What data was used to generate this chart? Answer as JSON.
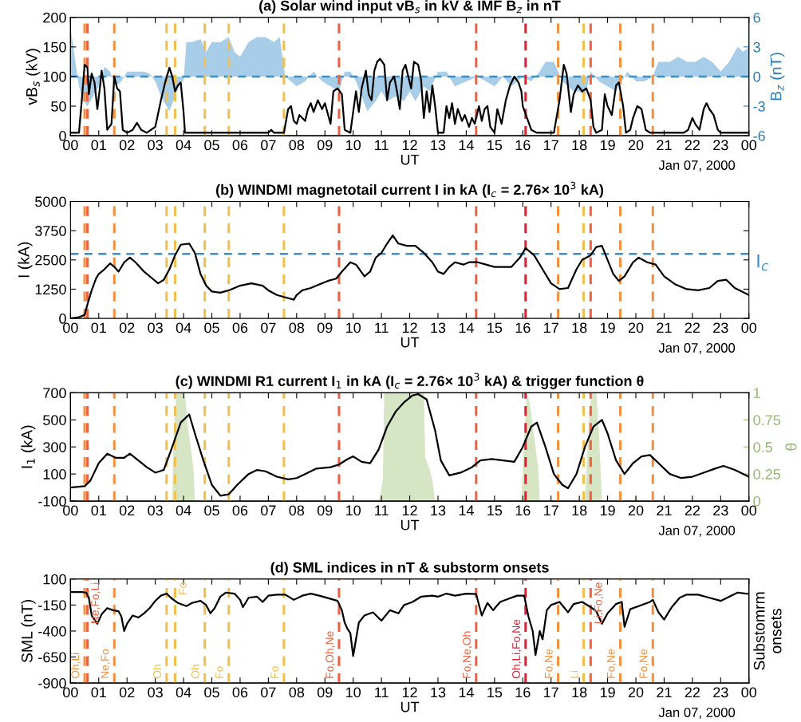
{
  "chart_data": [
    {
      "type": "line",
      "title": "(a) Solar wind input vB$_{s}$ in kV & IMF B$_{z}$ in nT",
      "xlabel": "UT",
      "ylabel": "vB$_{s}$ (kV)",
      "y2label": "B$_{z}$ (nT)",
      "annotations": [
        "Jan 07, 2000"
      ],
      "xlim": [
        0,
        24
      ],
      "xticks": [
        {
          "value": 0,
          "label": "00"
        },
        {
          "value": 1,
          "label": "01"
        },
        {
          "value": 2,
          "label": "02"
        },
        {
          "value": 3,
          "label": "03"
        },
        {
          "value": 4,
          "label": "04"
        },
        {
          "value": 5,
          "label": "05"
        },
        {
          "value": 6,
          "label": "06"
        },
        {
          "value": 7,
          "label": "07"
        },
        {
          "value": 8,
          "label": "08"
        },
        {
          "value": 9,
          "label": "09"
        },
        {
          "value": 10,
          "label": "10"
        },
        {
          "value": 11,
          "label": "11"
        },
        {
          "value": 12,
          "label": "12"
        },
        {
          "value": 13,
          "label": "13"
        },
        {
          "value": 14,
          "label": "14"
        },
        {
          "value": 15,
          "label": "15"
        },
        {
          "value": 16,
          "label": "16"
        },
        {
          "value": 17,
          "label": "17"
        },
        {
          "value": 18,
          "label": "18"
        },
        {
          "value": 19,
          "label": "19"
        },
        {
          "value": 20,
          "label": "20"
        },
        {
          "value": 21,
          "label": "21"
        },
        {
          "value": 22,
          "label": "22"
        },
        {
          "value": 23,
          "label": "23"
        },
        {
          "value": 24,
          "label": "00"
        }
      ],
      "ylim": [
        0,
        200
      ],
      "yticks": [
        0,
        50,
        100,
        150,
        200
      ],
      "y2lim": [
        -6,
        6
      ],
      "y2ticks": [
        -6,
        -3,
        0,
        3,
        6
      ],
      "series": [
        {
          "type": "area",
          "axis": "y2",
          "color": "#a8cde8",
          "x": [
            0,
            0.15,
            0.3,
            0.45,
            0.6,
            0.8,
            1.0,
            1.2,
            1.4,
            1.6,
            1.8,
            2.0,
            2.3,
            2.6,
            2.8,
            3.0,
            3.2,
            3.5,
            3.7,
            3.9,
            4.0,
            4.1,
            4.3,
            4.6,
            4.8,
            5.0,
            5.3,
            5.6,
            5.8,
            6.0,
            6.3,
            6.6,
            6.9,
            7.2,
            7.4,
            7.6,
            7.8,
            8.0,
            8.3,
            8.6,
            8.9,
            9.2,
            9.5,
            9.7,
            9.9,
            10.1,
            10.3,
            10.5,
            10.8,
            11.0,
            11.2,
            11.5,
            11.8,
            12.0,
            12.2,
            12.5,
            12.7,
            13.0,
            13.3,
            13.6,
            14.0,
            14.4,
            14.7,
            15.0,
            15.3,
            15.6,
            16.0,
            16.3,
            16.6,
            16.8,
            17.1,
            17.4,
            17.6,
            17.8,
            18.0,
            18.2,
            18.4,
            18.7,
            19.0,
            19.3,
            19.5,
            19.7,
            20.0,
            20.3,
            20.6,
            20.8,
            21.2,
            21.5,
            21.8,
            22.1,
            22.4,
            22.7,
            23.0,
            23.3,
            23.6,
            23.8,
            24
          ],
          "values": [
            5,
            2,
            -1,
            -2.5,
            -3,
            -2,
            -1,
            1,
            0.5,
            -1,
            -0.5,
            0.5,
            0.5,
            0.5,
            0.3,
            -0.5,
            -2,
            -3.5,
            -2,
            -0.5,
            -0.5,
            3.5,
            3.5,
            3.8,
            2.5,
            3.5,
            3.5,
            4,
            2.5,
            2,
            3.5,
            4,
            4,
            3.5,
            4,
            0,
            -0.5,
            -1,
            -0.5,
            0.5,
            -0.5,
            -1,
            -1.5,
            0.5,
            0.5,
            -0.5,
            -2,
            -3.5,
            -2.5,
            -1.5,
            -2.5,
            -2,
            -2.5,
            -1.5,
            -2.5,
            -1,
            -1.5,
            0.5,
            0.5,
            -1,
            -0.5,
            0,
            -0.5,
            -1,
            0,
            -1,
            0,
            -0.5,
            0.5,
            1.5,
            1.5,
            -0.5,
            -1,
            -1.5,
            -1.5,
            -2,
            0.5,
            -0.5,
            -1,
            -1.5,
            -0.5,
            0.5,
            -0.5,
            -0.5,
            0,
            1.5,
            1.5,
            2,
            1.5,
            1.5,
            2,
            1.5,
            0.5,
            1.5,
            3,
            2.5,
            3
          ]
        },
        {
          "color": "#000000",
          "x": [
            0,
            0.3,
            0.4,
            0.5,
            0.6,
            0.65,
            0.75,
            0.85,
            0.95,
            1.05,
            1.1,
            1.2,
            1.3,
            1.45,
            1.55,
            1.65,
            1.75,
            1.85,
            2.0,
            2.2,
            2.35,
            2.5,
            2.7,
            3.0,
            3.2,
            3.35,
            3.5,
            3.6,
            3.7,
            3.8,
            3.9,
            4.0,
            4.05,
            7.0,
            7.1,
            7.2,
            7.55,
            7.7,
            7.8,
            7.9,
            8.0,
            8.1,
            8.3,
            8.4,
            8.5,
            8.6,
            8.75,
            8.9,
            9.0,
            9.2,
            9.3,
            9.45,
            9.6,
            9.7,
            9.9,
            10.0,
            10.1,
            10.2,
            10.3,
            10.45,
            10.55,
            10.65,
            10.75,
            10.85,
            10.95,
            11.1,
            11.2,
            11.3,
            11.45,
            11.55,
            11.65,
            11.75,
            11.85,
            11.95,
            12.05,
            12.15,
            12.3,
            12.4,
            12.5,
            12.6,
            12.7,
            12.8,
            12.9,
            13.0,
            13.2,
            13.3,
            13.4,
            13.5,
            13.6,
            13.7,
            13.85,
            13.95,
            14.1,
            14.2,
            14.3,
            14.45,
            14.55,
            14.65,
            14.75,
            14.85,
            15.0,
            15.1,
            15.25,
            15.4,
            15.55,
            15.7,
            15.85,
            15.95,
            16.0,
            16.15,
            16.3,
            16.5,
            17.1,
            17.3,
            17.45,
            17.55,
            17.7,
            17.8,
            17.95,
            18.1,
            18.25,
            18.4,
            18.5,
            18.6,
            18.8,
            18.9,
            19.0,
            19.15,
            19.3,
            19.4,
            19.55,
            19.65,
            19.8,
            19.9,
            20.05,
            20.2,
            20.35,
            20.5,
            21.7,
            21.85,
            22.0,
            22.1,
            22.25,
            22.4,
            22.5,
            22.6,
            22.75,
            22.9,
            23.0,
            24
          ],
          "values": [
            5,
            5,
            60,
            120,
            115,
            70,
            105,
            90,
            45,
            85,
            110,
            80,
            10,
            20,
            100,
            80,
            75,
            10,
            5,
            10,
            22,
            10,
            5,
            15,
            60,
            90,
            115,
            100,
            75,
            85,
            90,
            40,
            5,
            5,
            10,
            5,
            5,
            45,
            50,
            25,
            20,
            35,
            25,
            45,
            55,
            40,
            60,
            45,
            55,
            20,
            75,
            80,
            70,
            10,
            5,
            40,
            75,
            40,
            80,
            110,
            70,
            60,
            110,
            125,
            130,
            120,
            60,
            90,
            100,
            75,
            45,
            110,
            120,
            100,
            80,
            125,
            120,
            95,
            30,
            75,
            40,
            85,
            50,
            5,
            5,
            50,
            30,
            55,
            20,
            45,
            25,
            35,
            15,
            30,
            20,
            50,
            25,
            45,
            50,
            15,
            5,
            45,
            20,
            60,
            85,
            100,
            90,
            75,
            50,
            30,
            10,
            5,
            5,
            60,
            120,
            105,
            40,
            70,
            85,
            75,
            80,
            60,
            15,
            5,
            10,
            70,
            50,
            35,
            85,
            90,
            50,
            5,
            10,
            30,
            50,
            45,
            10,
            5,
            5,
            10,
            30,
            20,
            10,
            45,
            55,
            45,
            35,
            10,
            5,
            5
          ]
        }
      ],
      "ref_lines": [
        {
          "axis": "y2",
          "value": 0,
          "color": "#3a8fc8",
          "line_style": "dashed"
        },
        {
          "axis": "x",
          "value": 0.5,
          "color": "#f39040",
          "line_style": "dashed"
        },
        {
          "axis": "x",
          "value": 0.6,
          "color": "#ee6040",
          "line_style": "dashed"
        },
        {
          "axis": "x",
          "value": 1.55,
          "color": "#f39040",
          "line_style": "dashed"
        },
        {
          "axis": "x",
          "value": 3.4,
          "color": "#efc050",
          "line_style": "dashed"
        },
        {
          "axis": "x",
          "value": 3.7,
          "color": "#efc050",
          "line_style": "dashed"
        },
        {
          "axis": "x",
          "value": 4.75,
          "color": "#efc050",
          "line_style": "dashed"
        },
        {
          "axis": "x",
          "value": 5.6,
          "color": "#efc050",
          "line_style": "dashed"
        },
        {
          "axis": "x",
          "value": 7.55,
          "color": "#efc050",
          "line_style": "dashed"
        },
        {
          "axis": "x",
          "value": 9.5,
          "color": "#ee6040",
          "line_style": "dashed"
        },
        {
          "axis": "x",
          "value": 14.35,
          "color": "#ee6040",
          "line_style": "dashed"
        },
        {
          "axis": "x",
          "value": 16.1,
          "color": "#e02030",
          "line_style": "dashed"
        },
        {
          "axis": "x",
          "value": 17.25,
          "color": "#f39040",
          "line_style": "dashed"
        },
        {
          "axis": "x",
          "value": 18.15,
          "color": "#efc050",
          "line_style": "dashed"
        },
        {
          "axis": "x",
          "value": 18.4,
          "color": "#ee6040",
          "line_style": "dashed"
        },
        {
          "axis": "x",
          "value": 19.45,
          "color": "#f39040",
          "line_style": "dashed"
        },
        {
          "axis": "x",
          "value": 20.6,
          "color": "#f39040",
          "line_style": "dashed"
        }
      ]
    },
    {
      "type": "line",
      "title": "(b) WINDMI magnetotail current I in kA (I$_{c}$ = 2.76× 10$^{3}$ kA)",
      "xlabel": "UT",
      "ylabel": "I (kA)",
      "annotations": [
        "Jan 07, 2000"
      ],
      "xlim": [
        0,
        24
      ],
      "xticks": [
        {
          "value": 0,
          "label": "00"
        },
        {
          "value": 1,
          "label": "01"
        },
        {
          "value": 2,
          "label": "02"
        },
        {
          "value": 3,
          "label": "03"
        },
        {
          "value": 4,
          "label": "04"
        },
        {
          "value": 5,
          "label": "05"
        },
        {
          "value": 6,
          "label": "06"
        },
        {
          "value": 7,
          "label": "07"
        },
        {
          "value": 8,
          "label": "08"
        },
        {
          "value": 9,
          "label": "09"
        },
        {
          "value": 10,
          "label": "10"
        },
        {
          "value": 11,
          "label": "11"
        },
        {
          "value": 12,
          "label": "12"
        },
        {
          "value": 13,
          "label": "13"
        },
        {
          "value": 14,
          "label": "14"
        },
        {
          "value": 15,
          "label": "15"
        },
        {
          "value": 16,
          "label": "16"
        },
        {
          "value": 17,
          "label": "17"
        },
        {
          "value": 18,
          "label": "18"
        },
        {
          "value": 19,
          "label": "19"
        },
        {
          "value": 20,
          "label": "20"
        },
        {
          "value": 21,
          "label": "21"
        },
        {
          "value": 22,
          "label": "22"
        },
        {
          "value": 23,
          "label": "23"
        },
        {
          "value": 24,
          "label": "00"
        }
      ],
      "ylim": [
        0,
        5000
      ],
      "yticks": [
        0,
        1250,
        2500,
        3750,
        5000
      ],
      "series": [
        {
          "color": "#000000",
          "x": [
            0,
            0.3,
            0.5,
            0.6,
            0.75,
            0.9,
            1.0,
            1.2,
            1.4,
            1.55,
            1.7,
            1.9,
            2.1,
            2.3,
            2.6,
            2.9,
            3.1,
            3.3,
            3.5,
            3.7,
            3.9,
            4.2,
            4.4,
            4.6,
            4.8,
            5.0,
            5.3,
            5.6,
            6.0,
            6.4,
            6.8,
            7.0,
            7.3,
            7.6,
            7.9,
            8.0,
            8.2,
            8.5,
            8.8,
            9.1,
            9.4,
            9.6,
            9.9,
            10.1,
            10.4,
            10.6,
            10.8,
            11.0,
            11.2,
            11.4,
            11.6,
            11.9,
            12.2,
            12.5,
            12.8,
            13.0,
            13.2,
            13.4,
            13.6,
            13.9,
            14.1,
            14.4,
            14.7,
            15.0,
            15.3,
            15.6,
            15.9,
            16.1,
            16.4,
            16.7,
            17.0,
            17.3,
            17.6,
            17.9,
            18.1,
            18.4,
            18.6,
            18.8,
            19.0,
            19.2,
            19.4,
            19.6,
            19.9,
            20.1,
            20.4,
            20.7,
            21.0,
            21.4,
            21.8,
            22.2,
            22.6,
            22.9,
            23.2,
            23.5,
            24
          ],
          "values": [
            0,
            50,
            150,
            600,
            1200,
            1700,
            1900,
            2100,
            2350,
            2200,
            2000,
            2400,
            2600,
            2400,
            2000,
            1700,
            1500,
            1650,
            2100,
            2700,
            3150,
            3200,
            2800,
            1900,
            1400,
            1150,
            1100,
            1200,
            1400,
            1500,
            1400,
            1200,
            1000,
            900,
            800,
            1000,
            1200,
            1300,
            1450,
            1600,
            1700,
            2000,
            2400,
            2300,
            1800,
            2000,
            2600,
            2800,
            3200,
            3550,
            3200,
            3100,
            3100,
            2800,
            2400,
            2000,
            1900,
            2200,
            2400,
            2300,
            2400,
            2400,
            2300,
            2200,
            2200,
            2200,
            2600,
            3000,
            2700,
            2100,
            1500,
            1250,
            1300,
            2100,
            2500,
            2700,
            3050,
            3100,
            2500,
            1900,
            1600,
            1800,
            2400,
            2600,
            2400,
            2300,
            1800,
            1450,
            1250,
            1200,
            1300,
            1600,
            1650,
            1300,
            1000
          ]
        }
      ],
      "ref_lines": [
        {
          "axis": "y",
          "value": 2760,
          "label": "I$_{c}$",
          "color": "#3a8fc8",
          "line_style": "dashed"
        },
        {
          "axis": "x",
          "value": 0.5,
          "color": "#f39040",
          "line_style": "dashed"
        },
        {
          "axis": "x",
          "value": 0.6,
          "color": "#ee6040",
          "line_style": "dashed"
        },
        {
          "axis": "x",
          "value": 1.55,
          "color": "#f39040",
          "line_style": "dashed"
        },
        {
          "axis": "x",
          "value": 3.4,
          "color": "#efc050",
          "line_style": "dashed"
        },
        {
          "axis": "x",
          "value": 3.7,
          "color": "#efc050",
          "line_style": "dashed"
        },
        {
          "axis": "x",
          "value": 4.75,
          "color": "#efc050",
          "line_style": "dashed"
        },
        {
          "axis": "x",
          "value": 5.6,
          "color": "#efc050",
          "line_style": "dashed"
        },
        {
          "axis": "x",
          "value": 7.55,
          "color": "#efc050",
          "line_style": "dashed"
        },
        {
          "axis": "x",
          "value": 9.5,
          "color": "#ee6040",
          "line_style": "dashed"
        },
        {
          "axis": "x",
          "value": 14.35,
          "color": "#ee6040",
          "line_style": "dashed"
        },
        {
          "axis": "x",
          "value": 16.1,
          "color": "#e02030",
          "line_style": "dashed"
        },
        {
          "axis": "x",
          "value": 17.25,
          "color": "#f39040",
          "line_style": "dashed"
        },
        {
          "axis": "x",
          "value": 18.15,
          "color": "#efc050",
          "line_style": "dashed"
        },
        {
          "axis": "x",
          "value": 18.4,
          "color": "#ee6040",
          "line_style": "dashed"
        },
        {
          "axis": "x",
          "value": 19.45,
          "color": "#f39040",
          "line_style": "dashed"
        },
        {
          "axis": "x",
          "value": 20.6,
          "color": "#f39040",
          "line_style": "dashed"
        }
      ]
    },
    {
      "type": "line",
      "title": "(c) WINDMI R1 current I$_{1}$ in kA (I$_{c}$ = 2.76× 10$^{3}$ kA) & trigger function θ",
      "xlabel": "UT",
      "ylabel": "I$_{1}$ (kA)",
      "y2label": "θ",
      "annotations": [
        "Jan 07, 2000"
      ],
      "xlim": [
        0,
        24
      ],
      "xticks": [
        {
          "value": 0,
          "label": "00"
        },
        {
          "value": 1,
          "label": "01"
        },
        {
          "value": 2,
          "label": "02"
        },
        {
          "value": 3,
          "label": "03"
        },
        {
          "value": 4,
          "label": "04"
        },
        {
          "value": 5,
          "label": "05"
        },
        {
          "value": 6,
          "label": "06"
        },
        {
          "value": 7,
          "label": "07"
        },
        {
          "value": 8,
          "label": "08"
        },
        {
          "value": 9,
          "label": "09"
        },
        {
          "value": 10,
          "label": "10"
        },
        {
          "value": 11,
          "label": "11"
        },
        {
          "value": 12,
          "label": "12"
        },
        {
          "value": 13,
          "label": "13"
        },
        {
          "value": 14,
          "label": "14"
        },
        {
          "value": 15,
          "label": "15"
        },
        {
          "value": 16,
          "label": "16"
        },
        {
          "value": 17,
          "label": "17"
        },
        {
          "value": 18,
          "label": "18"
        },
        {
          "value": 19,
          "label": "19"
        },
        {
          "value": 20,
          "label": "20"
        },
        {
          "value": 21,
          "label": "21"
        },
        {
          "value": 22,
          "label": "22"
        },
        {
          "value": 23,
          "label": "23"
        },
        {
          "value": 24,
          "label": "00"
        }
      ],
      "ylim": [
        -100,
        700
      ],
      "yticks": [
        -100,
        100,
        300,
        500,
        700
      ],
      "y2lim": [
        0,
        1
      ],
      "y2ticks": [
        0,
        0.25,
        0.5,
        0.75,
        1
      ],
      "series": [
        {
          "type": "area",
          "axis": "y2",
          "color": "#d6e6c4",
          "x": [
            0,
            3.6,
            3.65,
            3.75,
            4.05,
            4.15,
            4.35,
            4.4,
            10.9,
            10.95,
            11.05,
            11.1,
            12.5,
            12.55,
            12.7,
            12.8,
            12.9,
            15.95,
            16.05,
            16.15,
            16.25,
            16.4,
            16.55,
            16.6,
            18.2,
            18.35,
            18.45,
            18.6,
            18.7,
            18.8,
            19.9,
            20.0,
            20.1,
            24
          ],
          "values": [
            0,
            0,
            0.6,
            1,
            1,
            0.7,
            0.3,
            0,
            0,
            0.05,
            0.2,
            1,
            1,
            0.4,
            0.3,
            0.2,
            0,
            0,
            0.6,
            1,
            0.9,
            0.6,
            0.3,
            0,
            0,
            0.8,
            1,
            1,
            0.6,
            0,
            0,
            0.05,
            0,
            0
          ]
        },
        {
          "color": "#000000",
          "x": [
            0,
            0.5,
            0.7,
            1.0,
            1.3,
            1.6,
            1.9,
            2.1,
            2.4,
            2.7,
            3.0,
            3.3,
            3.6,
            3.9,
            4.2,
            4.4,
            4.7,
            5.0,
            5.3,
            5.6,
            5.9,
            6.3,
            6.6,
            6.9,
            7.3,
            7.7,
            8.0,
            8.3,
            8.7,
            9.2,
            9.5,
            9.8,
            10.0,
            10.3,
            10.6,
            10.9,
            11.2,
            11.5,
            11.8,
            12.1,
            12.3,
            12.6,
            12.9,
            13.1,
            13.4,
            13.8,
            14.2,
            14.5,
            14.9,
            15.3,
            15.7,
            16.0,
            16.3,
            16.5,
            16.8,
            17.1,
            17.4,
            17.6,
            17.9,
            18.2,
            18.5,
            18.8,
            19.0,
            19.3,
            19.6,
            19.9,
            20.2,
            20.5,
            20.8,
            21.2,
            21.6,
            22.0,
            22.4,
            22.8,
            23.1,
            23.5,
            24
          ],
          "values": [
            0,
            10,
            50,
            180,
            250,
            220,
            220,
            250,
            200,
            150,
            110,
            130,
            300,
            480,
            540,
            400,
            200,
            20,
            -60,
            -50,
            20,
            100,
            130,
            120,
            80,
            60,
            70,
            100,
            140,
            150,
            170,
            210,
            230,
            190,
            180,
            280,
            450,
            560,
            630,
            680,
            690,
            650,
            420,
            200,
            90,
            110,
            150,
            200,
            210,
            200,
            190,
            300,
            450,
            480,
            300,
            100,
            20,
            -5,
            100,
            300,
            450,
            500,
            400,
            200,
            100,
            180,
            230,
            240,
            180,
            100,
            70,
            80,
            110,
            140,
            160,
            130,
            80
          ]
        }
      ],
      "ref_lines": [
        {
          "axis": "x",
          "value": 0.5,
          "color": "#f39040",
          "line_style": "dashed"
        },
        {
          "axis": "x",
          "value": 0.6,
          "color": "#ee6040",
          "line_style": "dashed"
        },
        {
          "axis": "x",
          "value": 1.55,
          "color": "#f39040",
          "line_style": "dashed"
        },
        {
          "axis": "x",
          "value": 3.4,
          "color": "#efc050",
          "line_style": "dashed"
        },
        {
          "axis": "x",
          "value": 3.7,
          "color": "#efc050",
          "line_style": "dashed"
        },
        {
          "axis": "x",
          "value": 4.75,
          "color": "#efc050",
          "line_style": "dashed"
        },
        {
          "axis": "x",
          "value": 5.6,
          "color": "#efc050",
          "line_style": "dashed"
        },
        {
          "axis": "x",
          "value": 7.55,
          "color": "#efc050",
          "line_style": "dashed"
        },
        {
          "axis": "x",
          "value": 9.5,
          "color": "#ee6040",
          "line_style": "dashed"
        },
        {
          "axis": "x",
          "value": 14.35,
          "color": "#ee6040",
          "line_style": "dashed"
        },
        {
          "axis": "x",
          "value": 16.1,
          "color": "#e02030",
          "line_style": "dashed"
        },
        {
          "axis": "x",
          "value": 17.25,
          "color": "#f39040",
          "line_style": "dashed"
        },
        {
          "axis": "x",
          "value": 18.15,
          "color": "#efc050",
          "line_style": "dashed"
        },
        {
          "axis": "x",
          "value": 18.4,
          "color": "#ee6040",
          "line_style": "dashed"
        },
        {
          "axis": "x",
          "value": 19.45,
          "color": "#f39040",
          "line_style": "dashed"
        },
        {
          "axis": "x",
          "value": 20.6,
          "color": "#f39040",
          "line_style": "dashed"
        }
      ]
    },
    {
      "type": "line",
      "title": "(d) SML indices in nT & substorm onsets",
      "xlabel": "UT",
      "ylabel": "SML (nT)",
      "y2label": "Substomrm\nonsets",
      "annotations": [
        "Jan 07, 2000"
      ],
      "xlim": [
        0,
        24
      ],
      "xticks": [
        {
          "value": 0,
          "label": "00"
        },
        {
          "value": 1,
          "label": "01"
        },
        {
          "value": 2,
          "label": "02"
        },
        {
          "value": 3,
          "label": "03"
        },
        {
          "value": 4,
          "label": "04"
        },
        {
          "value": 5,
          "label": "05"
        },
        {
          "value": 6,
          "label": "06"
        },
        {
          "value": 7,
          "label": "07"
        },
        {
          "value": 8,
          "label": "08"
        },
        {
          "value": 9,
          "label": "09"
        },
        {
          "value": 10,
          "label": "10"
        },
        {
          "value": 11,
          "label": "11"
        },
        {
          "value": 12,
          "label": "12"
        },
        {
          "value": 13,
          "label": "13"
        },
        {
          "value": 14,
          "label": "14"
        },
        {
          "value": 15,
          "label": "15"
        },
        {
          "value": 16,
          "label": "16"
        },
        {
          "value": 17,
          "label": "17"
        },
        {
          "value": 18,
          "label": "18"
        },
        {
          "value": 19,
          "label": "19"
        },
        {
          "value": 20,
          "label": "20"
        },
        {
          "value": 21,
          "label": "21"
        },
        {
          "value": 22,
          "label": "22"
        },
        {
          "value": 23,
          "label": "23"
        },
        {
          "value": 24,
          "label": "00"
        }
      ],
      "ylim": [
        -900,
        100
      ],
      "yticks": [
        -900,
        -650,
        -400,
        -150,
        100
      ],
      "series": [
        {
          "color": "#000000",
          "x": [
            0,
            0.4,
            0.55,
            0.65,
            0.75,
            0.95,
            1.1,
            1.3,
            1.5,
            1.7,
            1.8,
            1.9,
            2.0,
            2.2,
            2.4,
            2.6,
            2.8,
            3.0,
            3.2,
            3.4,
            3.55,
            3.8,
            4.1,
            4.3,
            4.6,
            4.8,
            4.95,
            5.1,
            5.3,
            5.5,
            5.8,
            6.0,
            6.1,
            6.3,
            6.6,
            6.8,
            7.0,
            7.3,
            7.6,
            7.9,
            8.2,
            8.5,
            8.8,
            9.2,
            9.45,
            9.6,
            9.7,
            9.8,
            9.9,
            10.0,
            10.2,
            10.4,
            10.7,
            11.0,
            11.3,
            11.6,
            11.8,
            12.1,
            12.4,
            12.8,
            13.0,
            13.3,
            13.6,
            14.0,
            14.35,
            14.55,
            14.75,
            14.95,
            15.2,
            15.5,
            15.8,
            16.05,
            16.2,
            16.35,
            16.45,
            16.6,
            16.7,
            16.85,
            17.0,
            17.3,
            17.6,
            17.8,
            18.1,
            18.4,
            18.6,
            18.8,
            19.0,
            19.3,
            19.5,
            19.6,
            19.8,
            20.1,
            20.5,
            20.6,
            20.8,
            21.0,
            21.2,
            21.3,
            21.55,
            21.8,
            22.2,
            22.6,
            23.0,
            23.3,
            23.6,
            23.9,
            24
          ],
          "values": [
            -25,
            -25,
            -30,
            -80,
            -250,
            -330,
            -240,
            -180,
            -200,
            -210,
            -260,
            -400,
            -330,
            -250,
            -270,
            -230,
            -180,
            -110,
            -60,
            -40,
            -80,
            -130,
            -160,
            -130,
            -110,
            -150,
            -230,
            -180,
            -70,
            -30,
            -40,
            -100,
            -170,
            -80,
            -70,
            -120,
            -60,
            -50,
            -50,
            -100,
            -60,
            -40,
            -60,
            -90,
            -110,
            -200,
            -320,
            -380,
            -420,
            -640,
            -320,
            -250,
            -220,
            -300,
            -200,
            -230,
            -150,
            -120,
            -70,
            -60,
            -70,
            -40,
            -60,
            -40,
            -45,
            -250,
            -130,
            -200,
            -120,
            -90,
            -60,
            -60,
            -260,
            -400,
            -630,
            -400,
            -480,
            -200,
            -150,
            -120,
            -220,
            -140,
            -120,
            -170,
            -210,
            -330,
            -230,
            -140,
            -120,
            -360,
            -190,
            -160,
            -120,
            -100,
            -220,
            -290,
            -200,
            -160,
            -80,
            -50,
            -50,
            -80,
            -110,
            -70,
            -30,
            -40,
            -40
          ]
        }
      ],
      "ref_lines": [
        {
          "axis": "x",
          "value": 0.5,
          "label": "Oh,Li",
          "color": "#f39040",
          "line_style": "dashed"
        },
        {
          "axis": "x",
          "value": 0.6,
          "label": "Ne,Fo,Li",
          "color": "#ee6040",
          "line_style": "dashed"
        },
        {
          "axis": "x",
          "value": 1.55,
          "label": "Ne,Fo",
          "color": "#f39040",
          "line_style": "dashed"
        },
        {
          "axis": "x",
          "value": 3.4,
          "label": "Oh",
          "color": "#efc050",
          "line_style": "dashed"
        },
        {
          "axis": "x",
          "value": 3.7,
          "label": "Fo",
          "color": "#efc050",
          "line_style": "dashed"
        },
        {
          "axis": "x",
          "value": 4.75,
          "label": "Oh",
          "color": "#efc050",
          "line_style": "dashed"
        },
        {
          "axis": "x",
          "value": 5.6,
          "label": "Fo",
          "color": "#efc050",
          "line_style": "dashed"
        },
        {
          "axis": "x",
          "value": 7.55,
          "label": "Fo",
          "color": "#efc050",
          "line_style": "dashed"
        },
        {
          "axis": "x",
          "value": 9.5,
          "label": "Fo,Oh,Ne",
          "color": "#ee6040",
          "line_style": "dashed"
        },
        {
          "axis": "x",
          "value": 14.35,
          "label": "Fo,Ne,Oh",
          "color": "#ee6040",
          "line_style": "dashed"
        },
        {
          "axis": "x",
          "value": 16.1,
          "label": "Oh,Li,Fo,Ne",
          "color": "#e02030",
          "line_style": "dashed"
        },
        {
          "axis": "x",
          "value": 17.25,
          "label": "Fo,Ne",
          "color": "#f39040",
          "line_style": "dashed"
        },
        {
          "axis": "x",
          "value": 18.15,
          "label": "Li",
          "color": "#efc050",
          "line_style": "dashed"
        },
        {
          "axis": "x",
          "value": 18.4,
          "label": "Li,Fo,Ne",
          "color": "#ee6040",
          "line_style": "dashed"
        },
        {
          "axis": "x",
          "value": 19.45,
          "label": "Fo,Ne",
          "color": "#f39040",
          "line_style": "dashed"
        },
        {
          "axis": "x",
          "value": 20.6,
          "label": "Fo,Ne",
          "color": "#f39040",
          "line_style": "dashed"
        }
      ]
    }
  ]
}
